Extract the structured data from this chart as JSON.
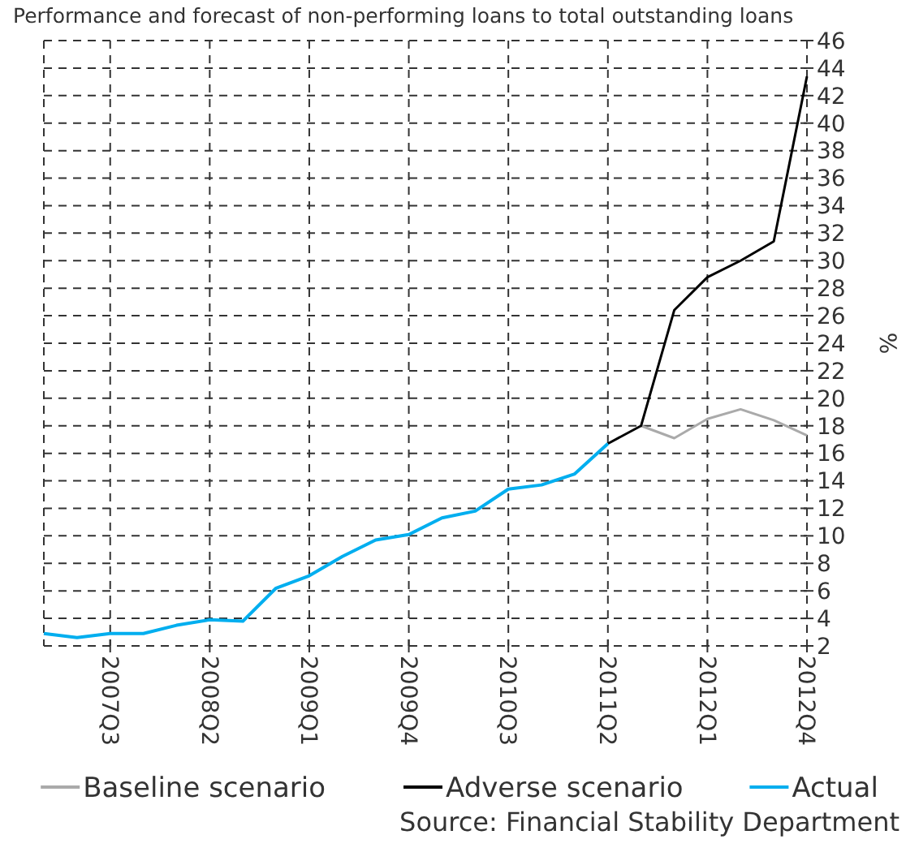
{
  "chart_data": {
    "type": "line",
    "title": "Performance and forecast of non-performing loans to total outstanding loans",
    "ylabel": "%",
    "categories": [
      null,
      null,
      "2007Q3",
      null,
      null,
      "2008Q2",
      null,
      null,
      "2009Q1",
      null,
      null,
      "2009Q4",
      null,
      null,
      "2010Q3",
      null,
      null,
      "2011Q2",
      null,
      null,
      "2012Q1",
      null,
      null,
      "2012Q4"
    ],
    "series": [
      {
        "name": "Baseline scenario",
        "color": "#aaaaaa",
        "values": [
          null,
          null,
          null,
          null,
          null,
          null,
          null,
          null,
          null,
          null,
          null,
          null,
          null,
          null,
          null,
          null,
          null,
          null,
          18.0,
          17.1,
          18.5,
          19.2,
          18.4,
          17.3
        ]
      },
      {
        "name": "Adverse scenario",
        "color": "#000000",
        "values": [
          null,
          null,
          null,
          null,
          null,
          null,
          null,
          null,
          null,
          null,
          null,
          null,
          null,
          null,
          null,
          null,
          null,
          16.7,
          18.0,
          26.4,
          28.8,
          30.0,
          31.4,
          43.4
        ]
      },
      {
        "name": "Actual",
        "color": "#00aeef",
        "values": [
          2.9,
          2.6,
          2.9,
          2.9,
          3.5,
          3.9,
          3.8,
          6.2,
          7.1,
          8.5,
          9.7,
          10.1,
          11.3,
          11.8,
          13.4,
          13.7,
          14.5,
          16.7,
          null,
          null,
          null,
          null,
          null,
          null
        ]
      }
    ],
    "ylim": [
      2,
      46
    ],
    "yticks": [
      2,
      4,
      6,
      8,
      10,
      12,
      14,
      16,
      18,
      20,
      22,
      24,
      26,
      28,
      30,
      32,
      34,
      36,
      38,
      40,
      42,
      44,
      46
    ],
    "grid": true,
    "legend": "bottom",
    "annotations": [
      "Source: Financial Stability Department"
    ]
  }
}
